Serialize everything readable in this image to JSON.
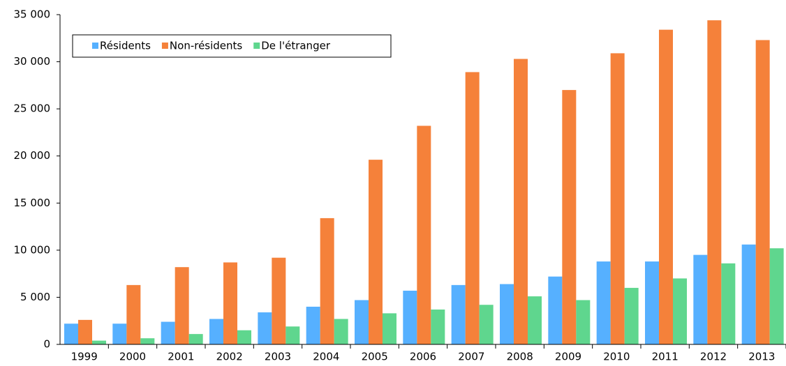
{
  "chart_data": {
    "type": "bar",
    "categories": [
      "1999",
      "2000",
      "2001",
      "2002",
      "2003",
      "2004",
      "2005",
      "2006",
      "2007",
      "2008",
      "2009",
      "2010",
      "2011",
      "2012",
      "2013"
    ],
    "series": [
      {
        "name": "Résidents",
        "color": "#56b0ff",
        "values": [
          2200,
          2200,
          2400,
          2700,
          3400,
          4000,
          4700,
          5700,
          6300,
          6400,
          7200,
          8800,
          8800,
          9500,
          10600
        ]
      },
      {
        "name": "Non-résidents",
        "color": "#f5813a",
        "values": [
          2600,
          6300,
          8200,
          8700,
          9200,
          13400,
          19600,
          23200,
          28900,
          30300,
          27000,
          30900,
          33400,
          34400,
          32300
        ]
      },
      {
        "name": "De l'étranger",
        "color": "#5fd68e",
        "values": [
          400,
          650,
          1100,
          1500,
          1900,
          2700,
          3300,
          3700,
          4200,
          5100,
          4700,
          6000,
          7000,
          8600,
          10200
        ]
      }
    ],
    "ylim": [
      0,
      35000
    ],
    "yticks": [
      0,
      {
        "value": 5000,
        "label": "5 000"
      },
      {
        "value": 10000,
        "label": "10 000"
      },
      {
        "value": 15000,
        "label": "15 000"
      },
      {
        "value": 20000,
        "label": "20 000"
      },
      {
        "value": 25000,
        "label": "25 000"
      },
      {
        "value": 30000,
        "label": "30 000"
      },
      {
        "value": 35000,
        "label": "35 000"
      }
    ],
    "legend": "top-left"
  }
}
